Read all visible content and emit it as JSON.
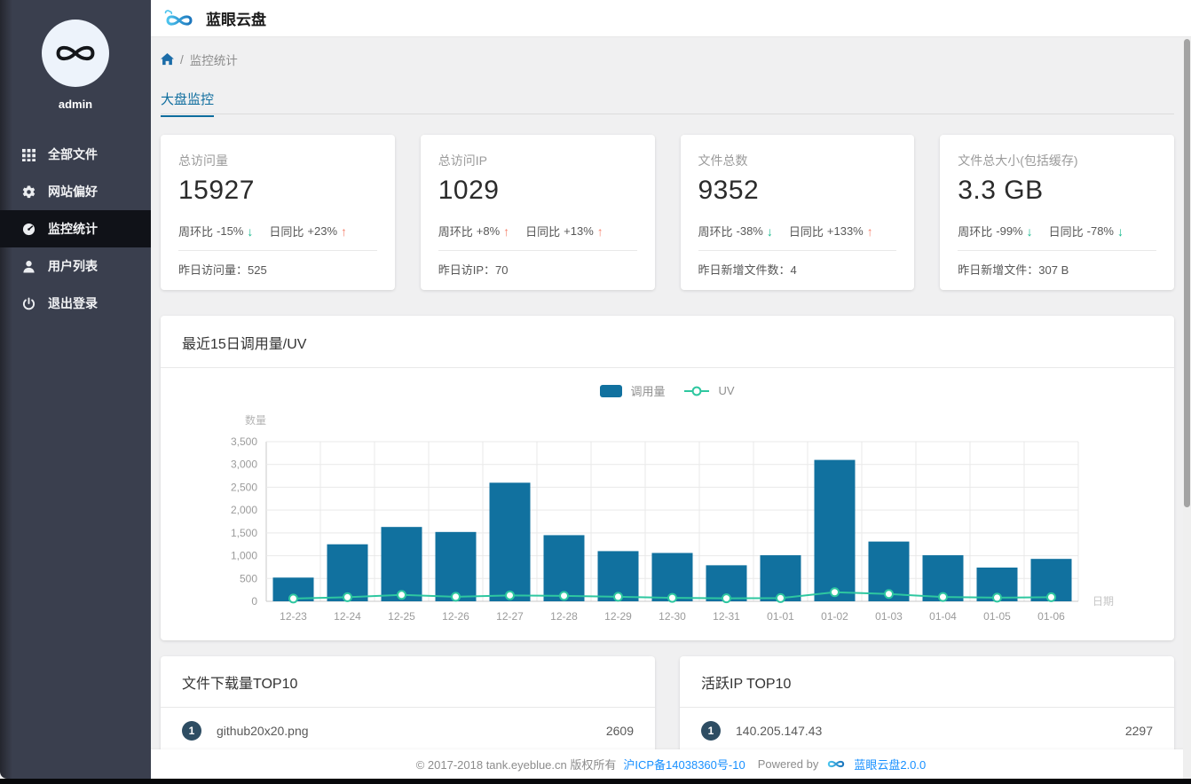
{
  "header": {
    "title": "蓝眼云盘"
  },
  "sidebar": {
    "username": "admin",
    "items": [
      {
        "label": "全部文件",
        "icon": "grid-icon",
        "active": false
      },
      {
        "label": "网站偏好",
        "icon": "gear-icon",
        "active": false
      },
      {
        "label": "监控统计",
        "icon": "dashboard-icon",
        "active": true
      },
      {
        "label": "用户列表",
        "icon": "user-icon",
        "active": false
      },
      {
        "label": "退出登录",
        "icon": "power-icon",
        "active": false
      }
    ]
  },
  "breadcrumb": {
    "separator": "/",
    "current": "监控统计"
  },
  "tabs": [
    {
      "label": "大盘监控",
      "active": true
    }
  ],
  "colors": {
    "up": "#f5816c",
    "down": "#15b98c",
    "bar": "#11719f",
    "uv_line": "#2ec7a0",
    "accent": "#0e6d9e",
    "link": "#1890ff"
  },
  "stat_cards": [
    {
      "label": "总访问量",
      "value": "15927",
      "week_label": "周环比",
      "week_value": "-15%",
      "week_arrow": "↓",
      "week_dir": "down",
      "day_label": "日同比",
      "day_value": "+23%",
      "day_arrow": "↑",
      "day_dir": "up",
      "footer_label": "昨日访问量：",
      "footer_value": "525"
    },
    {
      "label": "总访问IP",
      "value": "1029",
      "week_label": "周环比",
      "week_value": "+8%",
      "week_arrow": "↑",
      "week_dir": "up",
      "day_label": "日同比",
      "day_value": "+13%",
      "day_arrow": "↑",
      "day_dir": "up",
      "footer_label": "昨日访IP：",
      "footer_value": "70"
    },
    {
      "label": "文件总数",
      "value": "9352",
      "week_label": "周环比",
      "week_value": "-38%",
      "week_arrow": "↓",
      "week_dir": "down",
      "day_label": "日同比",
      "day_value": "+133%",
      "day_arrow": "↑",
      "day_dir": "up",
      "footer_label": "昨日新增文件数：",
      "footer_value": "4"
    },
    {
      "label": "文件总大小(包括缓存)",
      "value": "3.3 GB",
      "week_label": "周环比",
      "week_value": "-99%",
      "week_arrow": "↓",
      "week_dir": "down",
      "day_label": "日同比",
      "day_value": "-78%",
      "day_arrow": "↓",
      "day_dir": "down",
      "footer_label": "昨日新增文件：",
      "footer_value": "307 B"
    }
  ],
  "chart_card": {
    "title": "最近15日调用量/UV"
  },
  "chart_data": {
    "type": "bar",
    "categories": [
      "12-23",
      "12-24",
      "12-25",
      "12-26",
      "12-27",
      "12-28",
      "12-29",
      "12-30",
      "12-31",
      "01-01",
      "01-02",
      "01-03",
      "01-04",
      "01-05",
      "01-06"
    ],
    "series": [
      {
        "name": "调用量",
        "type": "bar",
        "values": [
          520,
          1250,
          1630,
          1520,
          2600,
          1450,
          1100,
          1060,
          790,
          1010,
          3100,
          1310,
          1010,
          740,
          930
        ]
      },
      {
        "name": "UV",
        "type": "line",
        "values": [
          60,
          90,
          140,
          100,
          130,
          120,
          100,
          75,
          65,
          70,
          200,
          160,
          95,
          80,
          90
        ]
      }
    ],
    "title": "最近15日调用量/UV",
    "xlabel": "日期",
    "ylabel": "数量",
    "ylim": [
      0,
      3500
    ],
    "ytick_step": 500,
    "grid": true,
    "legend_position": "top-center"
  },
  "top_lists": [
    {
      "title": "文件下载量TOP10",
      "rows": [
        {
          "rank": "1",
          "name": "github20x20.png",
          "value": "2609"
        }
      ]
    },
    {
      "title": "活跃IP TOP10",
      "rows": [
        {
          "rank": "1",
          "name": "140.205.147.43",
          "value": "2297"
        }
      ]
    }
  ],
  "footer": {
    "copyright": "© 2017-2018 tank.eyeblue.cn 版权所有",
    "icp": "沪ICP备14038360号-10",
    "powered_by": "Powered by",
    "product": "蓝眼云盘2.0.0"
  }
}
